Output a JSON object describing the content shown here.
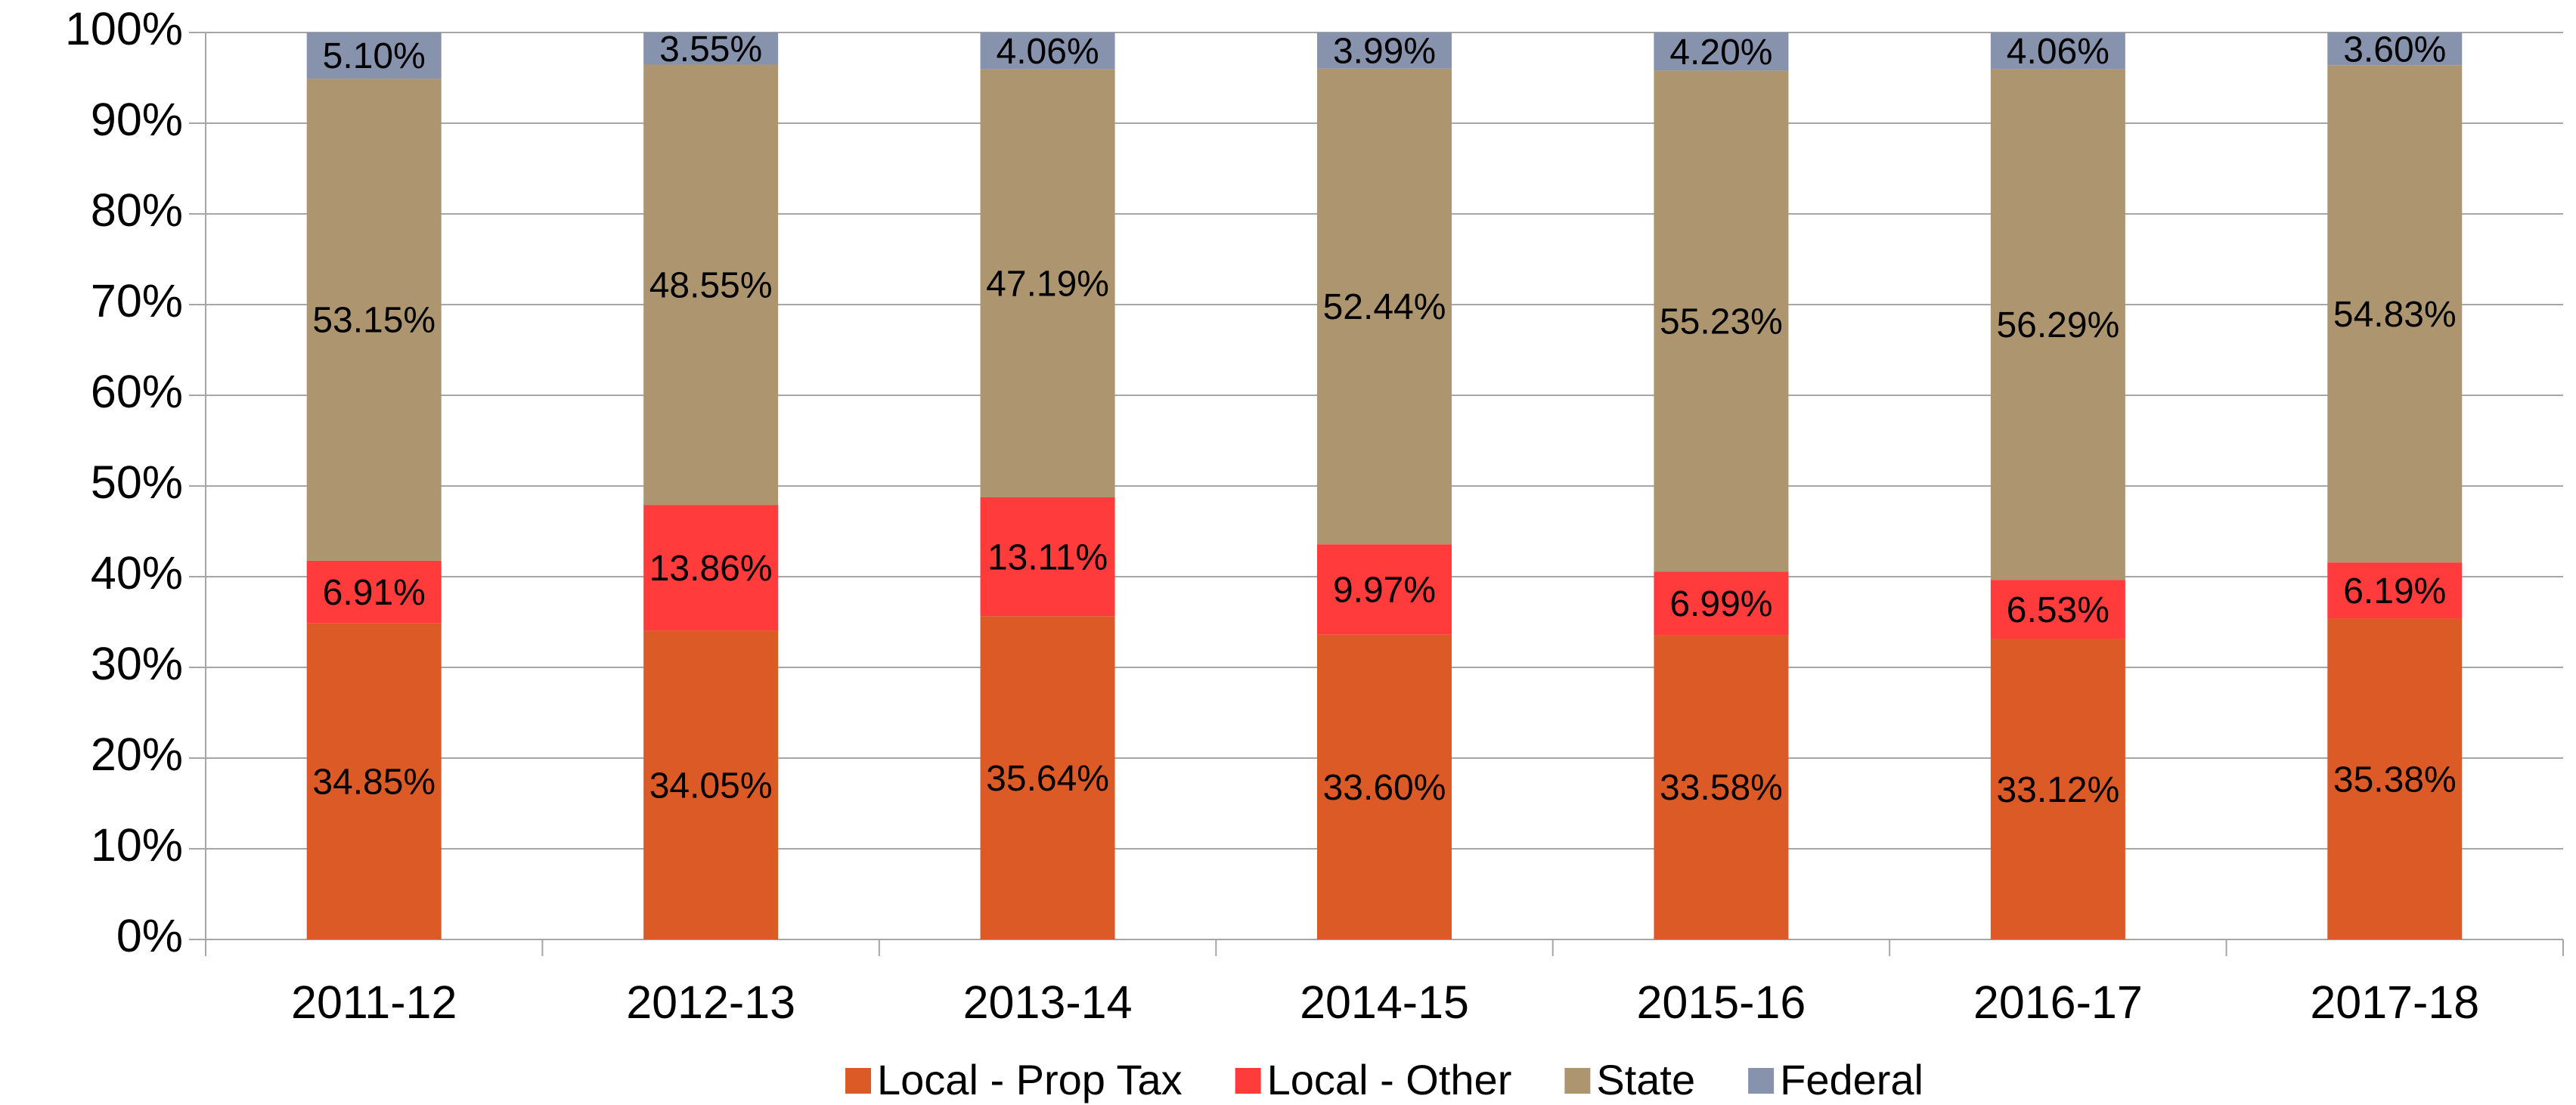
{
  "chart_data": {
    "type": "stacked_bar",
    "categories": [
      "2011-12",
      "2012-13",
      "2013-14",
      "2014-15",
      "2015-16",
      "2016-17",
      "2017-18"
    ],
    "series": [
      {
        "name": "Local - Prop Tax",
        "color": "#dc5a26",
        "values": [
          34.85,
          34.05,
          35.64,
          33.6,
          33.58,
          33.12,
          35.38
        ],
        "value_labels": [
          "34.85%",
          "34.05%",
          "35.64%",
          "33.60%",
          "33.58%",
          "33.12%",
          "35.38%"
        ]
      },
      {
        "name": "Local - Other",
        "color": "#ff3b3b",
        "values": [
          6.91,
          13.86,
          13.11,
          9.97,
          6.99,
          6.53,
          6.19
        ],
        "value_labels": [
          "6.91%",
          "13.86%",
          "13.11%",
          "9.97%",
          "6.99%",
          "6.53%",
          "6.19%"
        ]
      },
      {
        "name": "State",
        "color": "#ad966f",
        "values": [
          53.15,
          48.55,
          47.19,
          52.44,
          55.23,
          56.29,
          54.83
        ],
        "value_labels": [
          "53.15%",
          "48.55%",
          "47.19%",
          "52.44%",
          "55.23%",
          "56.29%",
          "54.83%"
        ]
      },
      {
        "name": "Federal",
        "color": "#8792ad",
        "values": [
          5.1,
          3.55,
          4.06,
          3.99,
          4.2,
          4.06,
          3.6
        ],
        "value_labels": [
          "5.10%",
          "3.55%",
          "4.06%",
          "3.99%",
          "4.20%",
          "4.06%",
          "3.60%"
        ]
      }
    ],
    "ylim": [
      0,
      100
    ],
    "yticks": [
      {
        "value": 0,
        "label": "0%"
      },
      {
        "value": 10,
        "label": "10%"
      },
      {
        "value": 20,
        "label": "20%"
      },
      {
        "value": 30,
        "label": "30%"
      },
      {
        "value": 40,
        "label": "40%"
      },
      {
        "value": 50,
        "label": "50%"
      },
      {
        "value": 60,
        "label": "60%"
      },
      {
        "value": 70,
        "label": "70%"
      },
      {
        "value": 80,
        "label": "80%"
      },
      {
        "value": 90,
        "label": "90%"
      },
      {
        "value": 100,
        "label": "100%"
      }
    ],
    "grid": true,
    "legend": "bottom"
  }
}
